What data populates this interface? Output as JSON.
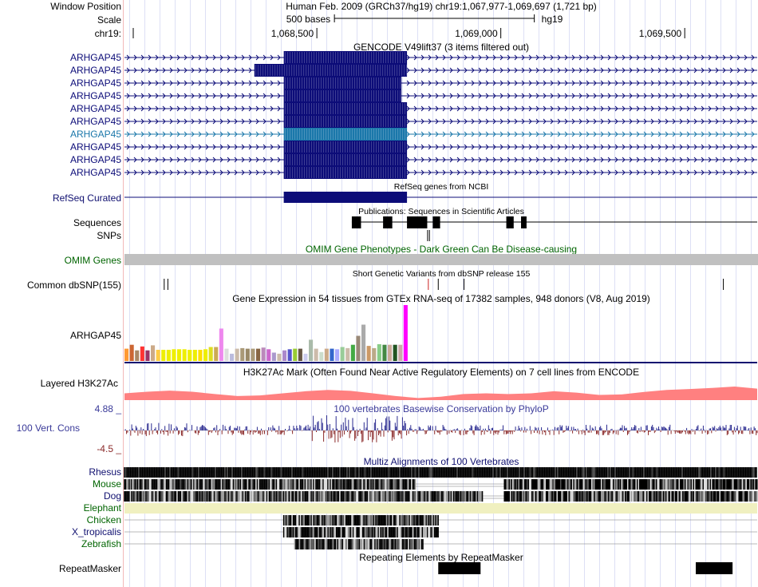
{
  "header": {
    "window_position_label": "Window Position",
    "window_position_text": "Human Feb. 2009 (GRCh37/hg19)   chr19:1,067,977-1,069,697 (1,721 bp)",
    "scale_label": "Scale",
    "scale_text": "500 bases",
    "assembly": "hg19",
    "chrom_label": "chr19:",
    "ticks": [
      {
        "pos": 1068500,
        "label": "1,068,500"
      },
      {
        "pos": 1069000,
        "label": "1,069,000"
      },
      {
        "pos": 1069500,
        "label": "1,069,500"
      }
    ]
  },
  "view": {
    "start": 1067977,
    "end": 1069697
  },
  "gencode": {
    "title": "GENCODE V49lift37 (3 items filtered out)",
    "transcripts": [
      {
        "name": "ARHGAP45",
        "cds_start": 1068410,
        "cds_end": 1068745,
        "selected": false
      },
      {
        "name": "ARHGAP45",
        "cds_start": 1068330,
        "cds_end": 1068745,
        "selected": false
      },
      {
        "name": "ARHGAP45",
        "cds_start": 1068410,
        "cds_end": 1068730,
        "selected": false
      },
      {
        "name": "ARHGAP45",
        "cds_start": 1068410,
        "cds_end": 1068730,
        "selected": false
      },
      {
        "name": "ARHGAP45",
        "cds_start": 1068410,
        "cds_end": 1068745,
        "selected": false
      },
      {
        "name": "ARHGAP45",
        "cds_start": 1068410,
        "cds_end": 1068745,
        "selected": false
      },
      {
        "name": "ARHGAP45",
        "cds_start": 1068410,
        "cds_end": 1068745,
        "selected": true
      },
      {
        "name": "ARHGAP45",
        "cds_start": 1068410,
        "cds_end": 1068745,
        "selected": false
      },
      {
        "name": "ARHGAP45",
        "cds_start": 1068410,
        "cds_end": 1068745,
        "selected": false
      },
      {
        "name": "ARHGAP45",
        "cds_start": 1068410,
        "cds_end": 1068745,
        "selected": false
      }
    ]
  },
  "refseq": {
    "label": "RefSeq Curated",
    "title": "RefSeq genes from NCBI",
    "exon_start": 1068410,
    "exon_end": 1068745
  },
  "publications": {
    "title": "Publications: Sequences in Scientific Articles",
    "label": "Sequences",
    "blocks": [
      [
        1068595,
        1068620
      ],
      [
        1068680,
        1068705
      ],
      [
        1068745,
        1068800
      ],
      [
        1068815,
        1068835
      ],
      [
        1069015,
        1069035
      ],
      [
        1069055,
        1069070
      ]
    ]
  },
  "snps": {
    "label": "SNPs",
    "positions": [
      1068801,
      1068806
    ]
  },
  "omim": {
    "title": "OMIM Gene Phenotypes - Dark Green Can Be Disease-causing",
    "label": "OMIM Genes"
  },
  "dbsnp": {
    "title": "Short Genetic Variants from dbSNP release 155",
    "label": "Common dbSNP(155)",
    "positions": [
      1068085,
      1068095,
      1068803,
      1068830,
      1068900,
      1069605
    ]
  },
  "gtex": {
    "title": "Gene Expression in 54 tissues from GTEx RNA-seq of 17382 samples, 948 donors (V8, Aug 2019)",
    "label": "ARHGAP45",
    "values": [
      0.22,
      0.29,
      0.19,
      0.26,
      0.19,
      0.28,
      0.2,
      0.2,
      0.2,
      0.21,
      0.21,
      0.21,
      0.2,
      0.2,
      0.2,
      0.21,
      0.25,
      0.25,
      0.58,
      0.22,
      0.13,
      0.22,
      0.23,
      0.22,
      0.22,
      0.22,
      0.24,
      0.21,
      0.15,
      0.13,
      0.19,
      0.21,
      0.22,
      0.22,
      0.13,
      0.38,
      0.22,
      0.16,
      0.22,
      0.22,
      0.21,
      0.25,
      0.23,
      0.29,
      0.45,
      0.65,
      0.27,
      0.23,
      0.3,
      0.29,
      0.29,
      0.29,
      0.29,
      1.0
    ],
    "colors": [
      "#ff9933",
      "#cc6633",
      "#aa8866",
      "#ff3333",
      "#993366",
      "#ccaa88",
      "#ffcc44",
      "#eeee00",
      "#eeee00",
      "#eeee00",
      "#eeee00",
      "#eeee00",
      "#eeee00",
      "#eeee00",
      "#ffdd00",
      "#eeee00",
      "#dddd22",
      "#ccaa55",
      "#ee88ee",
      "#dddddd",
      "#bbbbdd",
      "#ccbbaa",
      "#aa9977",
      "#998866",
      "#aa9977",
      "#886644",
      "#bb88bb",
      "#cc66cc",
      "#aa99cc",
      "#ccbbaa",
      "#aa88cc",
      "#5555cc",
      "#99cc33",
      "#665544",
      "#ccccee",
      "#aabbaa",
      "#ccbbaa",
      "#ccddcc",
      "#ccaa88",
      "#3366cc",
      "#aaaaff",
      "#99cc99",
      "#ccbbaa",
      "#44aa44",
      "#998877",
      "#aaaaaa",
      "#cc9966",
      "#bbaa88",
      "#88cc88",
      "#448844",
      "#ccaa99",
      "#225522",
      "#ccaaaa",
      "#ff00ff"
    ]
  },
  "h3k27ac": {
    "title": "H3K27Ac Mark (Often Found Near Active Regulatory Elements) on 7 cell lines from ENCODE",
    "label": "Layered H3K27Ac",
    "values": [
      0.5,
      0.62,
      0.7,
      0.62,
      0.45,
      0.3,
      0.35,
      0.5,
      0.65,
      0.75,
      0.68,
      0.5,
      0.3,
      0.15,
      0.25,
      0.45,
      0.5,
      0.45,
      0.5,
      0.65,
      0.55,
      0.38,
      0.42,
      0.6,
      0.75,
      0.82,
      0.9,
      1.0,
      0.85
    ]
  },
  "phylop": {
    "title": "100 vertebrates Basewise Conservation by PhyloP",
    "label": "100 Vert. Cons",
    "max_label": "4.88 _",
    "min_label": "-4.5 _"
  },
  "multiz": {
    "title": "Multiz Alignments of 100 Vertebrates",
    "species": [
      {
        "name": "Rhesus",
        "color": "#101070",
        "coverage": [
          [
            1067977,
            1069697
          ]
        ],
        "tone": "dark"
      },
      {
        "name": "Mouse",
        "color": "#006400",
        "coverage": [
          [
            1067977,
            1068770
          ],
          [
            1069010,
            1069697
          ]
        ],
        "tone": "mixed"
      },
      {
        "name": "Dog",
        "color": "#101070",
        "coverage": [
          [
            1067977,
            1068950
          ],
          [
            1069010,
            1069697
          ]
        ],
        "tone": "mixed"
      },
      {
        "name": "Elephant",
        "color": "#006400",
        "coverage": [
          [
            1067977,
            1069697
          ]
        ],
        "tone": "cream"
      },
      {
        "name": "Chicken",
        "color": "#006400",
        "coverage": [
          [
            1068410,
            1068830
          ]
        ],
        "tone": "mixed"
      },
      {
        "name": "X_tropicalis",
        "color": "#101070",
        "coverage": [
          [
            1068410,
            1068830
          ]
        ],
        "tone": "mixed"
      },
      {
        "name": "Zebrafish",
        "color": "#006400",
        "coverage": [
          [
            1068440,
            1068790
          ]
        ],
        "tone": "mixed"
      }
    ]
  },
  "repeatmasker": {
    "title": "Repeating Elements by RepeatMasker",
    "label": "RepeatMasker",
    "blocks": [
      [
        1068830,
        1068945
      ],
      [
        1069530,
        1069630
      ]
    ]
  },
  "colors": {
    "gene": "#0c0c78",
    "gene_selected": "#1a77aa",
    "label_blue": "#101070",
    "omim_green": "#006400",
    "h3k27ac": "#ff8080",
    "phylop_pos": "#2a2a90",
    "phylop_neg": "#8b2a2a",
    "omim_bar": "#c0c0c0",
    "elephant_cream": "#f0f0c0"
  }
}
